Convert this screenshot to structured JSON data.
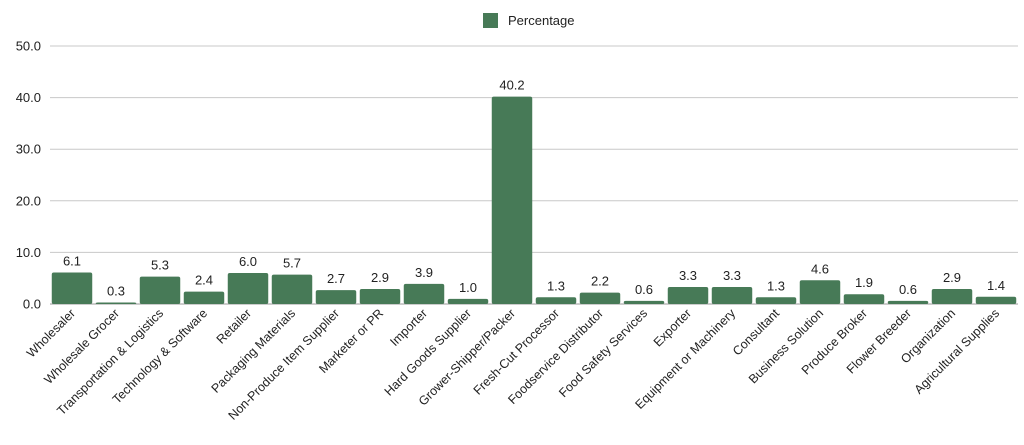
{
  "chart_data": {
    "type": "bar",
    "categories": [
      "Wholesaler",
      "Wholesale Grocer",
      "Transportation & Logistics",
      "Technology & Software",
      "Retailer",
      "Packaging Materials",
      "Non-Produce Item Supplier",
      "Marketer or PR",
      "Importer",
      "Hard Goods Supplier",
      "Grower-Shipper/Packer",
      "Fresh-Cut Processor",
      "Foodservice Distributor",
      "Food Safety Services",
      "Exporter",
      "Equipment or Machinery",
      "Consultant",
      "Business Solution",
      "Produce Broker",
      "Flower Breeder",
      "Organization",
      "Agricultural Supplies"
    ],
    "series": [
      {
        "name": "Percentage",
        "color": "#477a57",
        "values": [
          6.1,
          0.3,
          5.3,
          2.4,
          6.0,
          5.7,
          2.7,
          2.9,
          3.9,
          1.0,
          40.2,
          1.3,
          2.2,
          0.6,
          3.3,
          3.3,
          1.3,
          4.6,
          1.9,
          0.6,
          2.9,
          1.4
        ]
      }
    ],
    "ylim": [
      0,
      50
    ],
    "yticks": [
      "0.0",
      "10.0",
      "20.0",
      "30.0",
      "40.0",
      "50.0"
    ],
    "grid": true,
    "legend_position": "top-center",
    "data_labels": true
  }
}
